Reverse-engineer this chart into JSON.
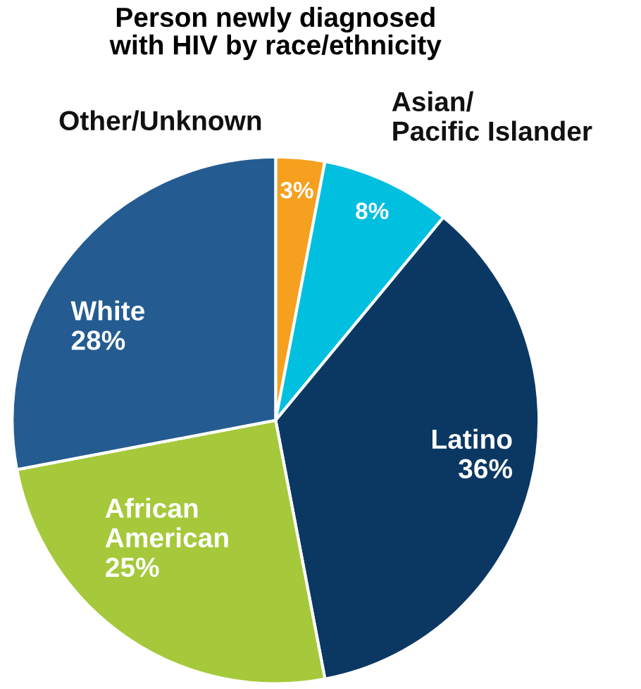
{
  "chart_data": {
    "type": "pie",
    "title": "Person newly diagnosed\nwith HIV by race/ethnicity",
    "categories": [
      "Other/Unknown",
      "Asian/\nPacific Islander",
      "Latino",
      "African\nAmerican",
      "White"
    ],
    "values": [
      3,
      8,
      36,
      25,
      28
    ],
    "colors": [
      "#f5a01f",
      "#00bfdf",
      "#0b3863",
      "#a5c93a",
      "#245c91"
    ],
    "value_labels": [
      "3%",
      "8%",
      "36%",
      "25%",
      "28%"
    ],
    "legend": false
  }
}
